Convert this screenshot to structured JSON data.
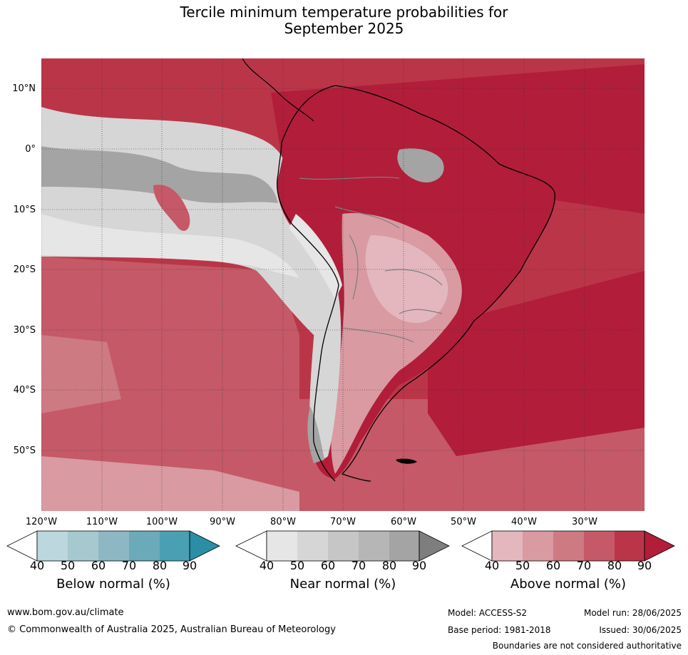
{
  "title": {
    "line1": "Tercile minimum temperature probabilities for",
    "line2": "September 2025"
  },
  "map": {
    "latitude_labels": [
      "10°N",
      "0°",
      "10°S",
      "20°S",
      "30°S",
      "40°S",
      "50°S"
    ],
    "longitude_labels": [
      "120°W",
      "110°W",
      "100°W",
      "90°W",
      "80°W",
      "70°W",
      "60°W",
      "50°W",
      "40°W",
      "30°W"
    ],
    "extent": {
      "lon": [
        -121,
        -21
      ],
      "lat": [
        -60,
        15
      ]
    },
    "gridlines": true
  },
  "legend": {
    "ticks": [
      "40",
      "50",
      "60",
      "70",
      "80",
      "90"
    ],
    "below": {
      "title": "Below normal (%)",
      "colors": [
        "#ffffff",
        "#bcd7dd",
        "#a6c9cf",
        "#8db8c3",
        "#6baab8",
        "#4aa0b2",
        "#2a8ea5"
      ]
    },
    "near": {
      "title": "Near normal (%)",
      "colors": [
        "#ffffff",
        "#e6e6e6",
        "#d6d6d6",
        "#c6c6c6",
        "#b6b6b6",
        "#a4a4a4",
        "#7e7e7e"
      ]
    },
    "above": {
      "title": "Above normal (%)",
      "colors": [
        "#ffffff",
        "#e3b7bd",
        "#d99aa2",
        "#cd7a83",
        "#c55967",
        "#bb3548",
        "#b21d3a"
      ]
    }
  },
  "footer": {
    "website": "www.bom.gov.au/climate",
    "copyright": "© Commonwealth of Australia 2025, Australian Bureau of Meteorology",
    "model": "Model: ACCESS-S2",
    "base_period": "Base period: 1981-2018",
    "model_run": "Model run: 28/06/2025",
    "issued": "Issued: 30/06/2025",
    "disclaimer": "Boundaries are not considered authoritative"
  }
}
